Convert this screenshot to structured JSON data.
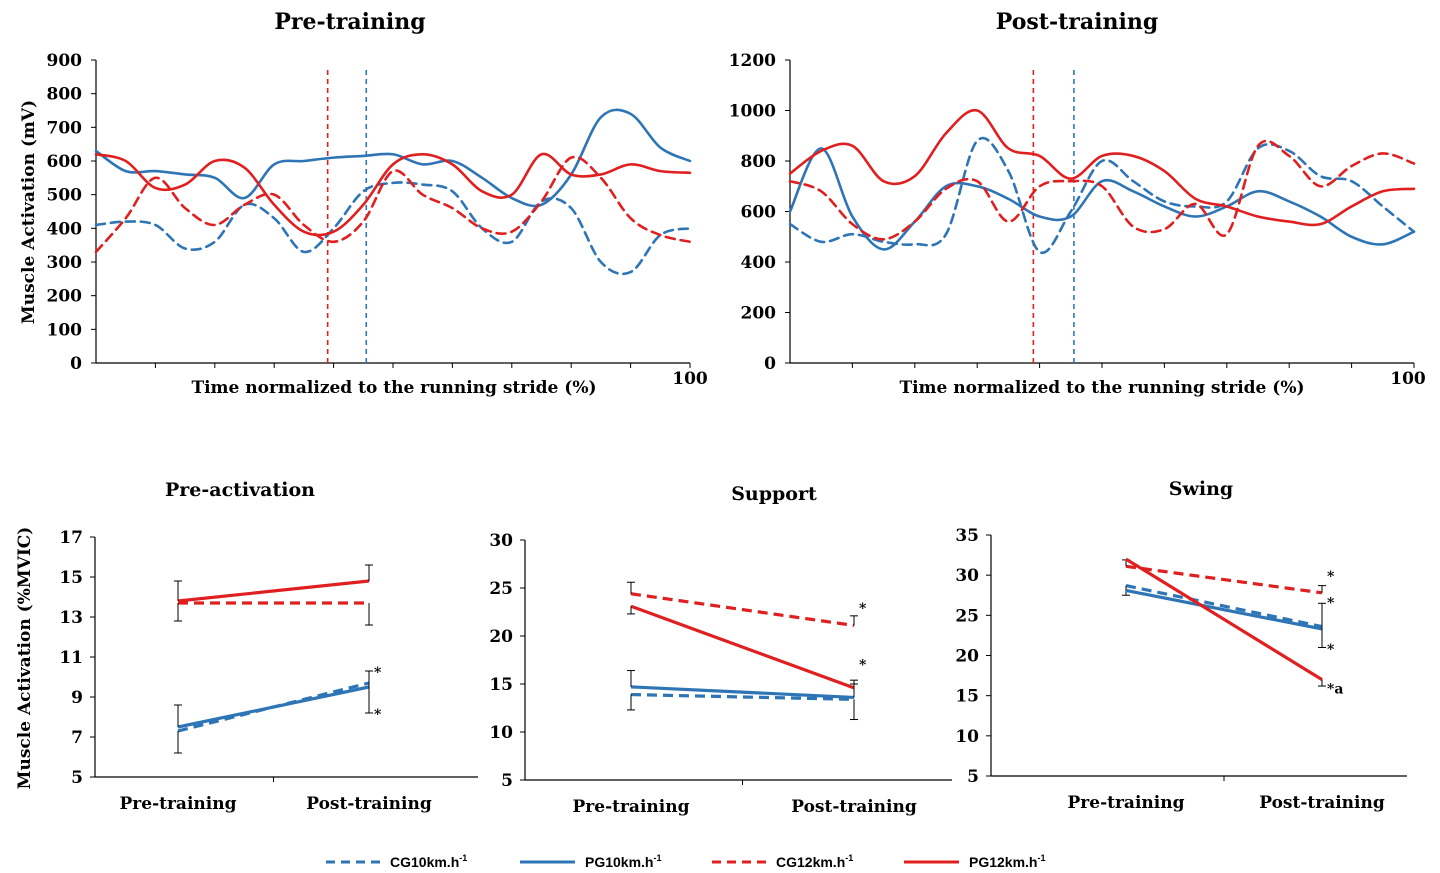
{
  "colors": {
    "blue": "#2E75B6",
    "red": "#E02020",
    "axis": "#000000"
  },
  "top_xlabel": "Time normalized to the running stride (%)",
  "bottom_ylabel": "Muscle Activation (%MVIC)",
  "legend": [
    {
      "label": "CG10km.h",
      "sup": "-1",
      "color": "blue",
      "dashed": true
    },
    {
      "label": "PG10km.h",
      "sup": "-1",
      "color": "blue",
      "dashed": false
    },
    {
      "label": "CG12km.h",
      "sup": "-1",
      "color": "red",
      "dashed": true
    },
    {
      "label": "PG12km.h",
      "sup": "-1",
      "color": "red",
      "dashed": false
    }
  ],
  "chart_data": [
    {
      "id": "pre-training-emg",
      "type": "line",
      "title": "Pre-training",
      "xlabel": "Time normalized to the running stride (%)",
      "ylabel": "Muscle Activation (mV)",
      "xlim": [
        0,
        100
      ],
      "ylim": [
        0,
        900
      ],
      "yticks": [
        0,
        100,
        200,
        300,
        400,
        500,
        600,
        700,
        800,
        900
      ],
      "x_end_label": "100",
      "vlines": [
        {
          "x": 39,
          "color": "red"
        },
        {
          "x": 45.5,
          "color": "blue"
        }
      ],
      "x": [
        0,
        5,
        10,
        15,
        20,
        25,
        30,
        35,
        40,
        45,
        50,
        55,
        60,
        65,
        70,
        75,
        80,
        85,
        90,
        95,
        100
      ],
      "series": [
        {
          "name": "CG10km.h-1",
          "color": "blue",
          "dashed": true,
          "values": [
            410,
            420,
            410,
            340,
            360,
            470,
            430,
            330,
            400,
            510,
            535,
            530,
            510,
            400,
            360,
            480,
            460,
            300,
            270,
            380,
            400
          ]
        },
        {
          "name": "PG10km.h-1",
          "color": "blue",
          "dashed": false,
          "values": [
            630,
            570,
            570,
            560,
            550,
            490,
            590,
            600,
            610,
            615,
            620,
            590,
            600,
            550,
            490,
            470,
            560,
            730,
            740,
            640,
            600
          ]
        },
        {
          "name": "CG12km.h-1",
          "color": "red",
          "dashed": true,
          "values": [
            330,
            430,
            550,
            460,
            410,
            470,
            500,
            410,
            360,
            420,
            570,
            500,
            460,
            400,
            390,
            480,
            610,
            550,
            430,
            380,
            360
          ]
        },
        {
          "name": "PG12km.h-1",
          "color": "red",
          "dashed": false,
          "values": [
            620,
            600,
            520,
            530,
            600,
            580,
            470,
            390,
            390,
            470,
            590,
            620,
            590,
            510,
            500,
            620,
            560,
            560,
            590,
            570,
            565
          ]
        }
      ]
    },
    {
      "id": "post-training-emg",
      "type": "line",
      "title": "Post-training",
      "xlabel": "Time normalized to the running stride (%)",
      "ylabel": "",
      "xlim": [
        0,
        100
      ],
      "ylim": [
        0,
        1200
      ],
      "yticks": [
        0,
        200,
        400,
        600,
        800,
        1000,
        1200
      ],
      "x_end_label": "100",
      "vlines": [
        {
          "x": 39,
          "color": "red"
        },
        {
          "x": 45.5,
          "color": "blue"
        }
      ],
      "x": [
        0,
        5,
        10,
        15,
        20,
        25,
        30,
        35,
        40,
        45,
        50,
        55,
        60,
        65,
        70,
        75,
        80,
        85,
        90,
        95,
        100
      ],
      "series": [
        {
          "name": "CG10km.h-1",
          "color": "blue",
          "dashed": true,
          "values": [
            550,
            480,
            510,
            480,
            470,
            510,
            880,
            760,
            440,
            600,
            800,
            720,
            640,
            620,
            640,
            850,
            840,
            740,
            720,
            620,
            520
          ]
        },
        {
          "name": "PG10km.h-1",
          "color": "blue",
          "dashed": false,
          "values": [
            600,
            850,
            580,
            450,
            560,
            700,
            700,
            650,
            580,
            580,
            720,
            680,
            620,
            580,
            620,
            680,
            640,
            580,
            500,
            470,
            520
          ]
        },
        {
          "name": "CG12km.h-1",
          "color": "red",
          "dashed": true,
          "values": [
            720,
            680,
            550,
            490,
            560,
            690,
            720,
            560,
            700,
            720,
            700,
            540,
            530,
            630,
            510,
            860,
            820,
            700,
            780,
            830,
            790
          ]
        },
        {
          "name": "PG12km.h-1",
          "color": "red",
          "dashed": false,
          "values": [
            750,
            840,
            860,
            720,
            740,
            910,
            1000,
            850,
            820,
            730,
            820,
            820,
            760,
            650,
            620,
            580,
            560,
            550,
            620,
            680,
            690
          ]
        }
      ]
    },
    {
      "id": "pre-activation",
      "type": "line",
      "title": "Pre-activation",
      "xlabel": "",
      "ylabel": "Muscle Activation (%MVIC)",
      "categories": [
        "Pre-training",
        "Post-training"
      ],
      "ylim": [
        5,
        17
      ],
      "yticks": [
        5,
        7,
        9,
        11,
        13,
        15,
        17
      ],
      "series": [
        {
          "name": "CG10km.h-1",
          "color": "blue",
          "dashed": true,
          "values": [
            7.3,
            9.7
          ],
          "err_up": [
            0,
            0.6
          ],
          "err_down": [
            1.1,
            0
          ]
        },
        {
          "name": "PG10km.h-1",
          "color": "blue",
          "dashed": false,
          "values": [
            7.5,
            9.5
          ],
          "err_up": [
            1.1,
            0.8
          ],
          "err_down": [
            0,
            1.3
          ]
        },
        {
          "name": "CG12km.h-1",
          "color": "red",
          "dashed": true,
          "values": [
            13.7,
            13.7
          ],
          "err_up": [
            0,
            0
          ],
          "err_down": [
            0.9,
            1.1
          ]
        },
        {
          "name": "PG12km.h-1",
          "color": "red",
          "dashed": false,
          "values": [
            13.8,
            14.8
          ],
          "err_up": [
            1.0,
            0.8
          ],
          "err_down": [
            0,
            0
          ]
        }
      ],
      "annotations": [
        {
          "text": "*",
          "x": "Post-training",
          "y": 10.0
        },
        {
          "text": "*",
          "x": "Post-training",
          "y": 7.9
        }
      ]
    },
    {
      "id": "support",
      "type": "line",
      "title": "Support",
      "xlabel": "",
      "ylabel": "",
      "categories": [
        "Pre-training",
        "Post-training"
      ],
      "ylim": [
        5,
        30
      ],
      "yticks": [
        5,
        10,
        15,
        20,
        25,
        30
      ],
      "series": [
        {
          "name": "CG10km.h-1",
          "color": "blue",
          "dashed": true,
          "values": [
            13.9,
            13.4
          ],
          "err_up": [
            0,
            0
          ],
          "err_down": [
            1.6,
            2.1
          ]
        },
        {
          "name": "PG10km.h-1",
          "color": "blue",
          "dashed": false,
          "values": [
            14.7,
            13.6
          ],
          "err_up": [
            1.7,
            1.4
          ],
          "err_down": [
            0,
            0
          ]
        },
        {
          "name": "CG12km.h-1",
          "color": "red",
          "dashed": true,
          "values": [
            24.4,
            21.1
          ],
          "err_up": [
            1.2,
            1.0
          ],
          "err_down": [
            0,
            0
          ]
        },
        {
          "name": "PG12km.h-1",
          "color": "red",
          "dashed": false,
          "values": [
            23.1,
            14.6
          ],
          "err_up": [
            0,
            0.8
          ],
          "err_down": [
            0.8,
            0
          ]
        }
      ],
      "annotations": [
        {
          "text": "*",
          "x": "Post-training",
          "y": 22.4
        },
        {
          "text": "*",
          "x": "Post-training",
          "y": 16.5
        }
      ]
    },
    {
      "id": "swing",
      "type": "line",
      "title": "Swing",
      "xlabel": "",
      "ylabel": "",
      "categories": [
        "Pre-training",
        "Post-training"
      ],
      "ylim": [
        5,
        35
      ],
      "yticks": [
        5,
        10,
        15,
        20,
        25,
        30,
        35
      ],
      "series": [
        {
          "name": "CG10km.h-1",
          "color": "blue",
          "dashed": true,
          "values": [
            28.7,
            23.6
          ],
          "err_up": [
            0,
            0
          ],
          "err_down": [
            1.2,
            0
          ]
        },
        {
          "name": "PG10km.h-1",
          "color": "blue",
          "dashed": false,
          "values": [
            28.1,
            23.3
          ],
          "err_up": [
            0,
            3.2
          ],
          "err_down": [
            0,
            2.3
          ]
        },
        {
          "name": "CG12km.h-1",
          "color": "red",
          "dashed": true,
          "values": [
            31.1,
            27.8
          ],
          "err_up": [
            0.8,
            0.9
          ],
          "err_down": [
            0,
            0
          ]
        },
        {
          "name": "PG12km.h-1",
          "color": "red",
          "dashed": false,
          "values": [
            32.0,
            17.0
          ],
          "err_up": [
            0,
            0
          ],
          "err_down": [
            0,
            0.8
          ]
        }
      ],
      "annotations": [
        {
          "text": "*",
          "x": "Post-training",
          "y": 29.3
        },
        {
          "text": "*",
          "x": "Post-training",
          "y": 26.0
        },
        {
          "text": "*",
          "x": "Post-training",
          "y": 20.2
        },
        {
          "text": "*a",
          "x": "Post-training",
          "y": 15.3
        }
      ]
    }
  ]
}
